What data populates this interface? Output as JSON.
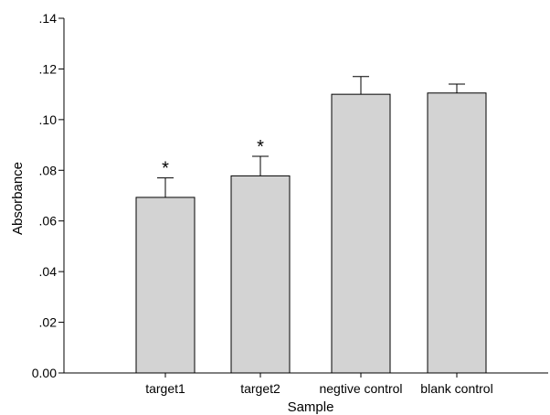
{
  "chart_data": {
    "type": "bar",
    "title": "",
    "xlabel": "Sample",
    "ylabel": "Absorbance",
    "categories": [
      "target1",
      "target2",
      "negtive control",
      "blank control"
    ],
    "values": [
      0.0693,
      0.0778,
      0.11,
      0.1105
    ],
    "error_upper": [
      0.077,
      0.0855,
      0.117,
      0.114
    ],
    "annotations": [
      "*",
      "*",
      "",
      ""
    ],
    "ylim": [
      0,
      0.14
    ],
    "yticks": [
      0,
      0.02,
      0.04,
      0.06,
      0.08,
      0.1,
      0.12,
      0.14
    ],
    "ytick_labels": [
      "0.00",
      ".02",
      ".04",
      ".06",
      ".08",
      ".10",
      ".12",
      ".14"
    ],
    "grid": false,
    "legend": "none",
    "colors": {
      "bar_fill": "#d3d3d3",
      "bar_stroke": "#000000",
      "axis": "#000000"
    }
  }
}
